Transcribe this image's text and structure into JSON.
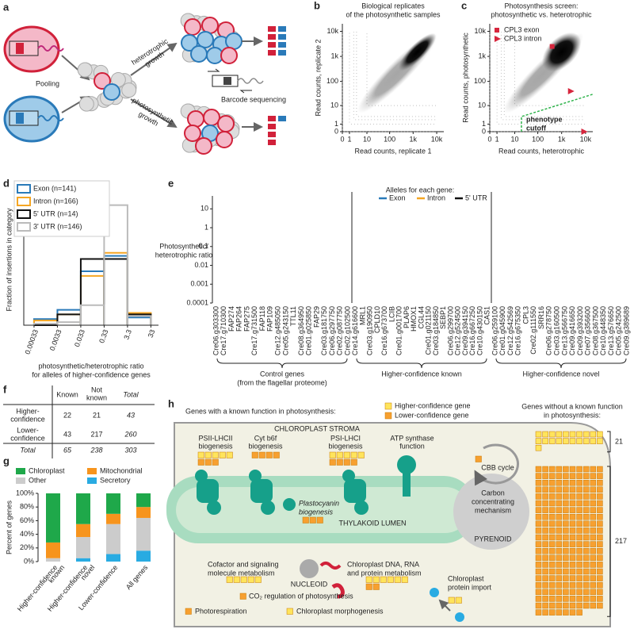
{
  "panels": {
    "a": {
      "label": "a",
      "pooling": "Pooling",
      "heterotrophic": [
        "heterotrophic",
        "growth"
      ],
      "photosynthetic": [
        "photosynthetic",
        "growth"
      ],
      "barcode": "Barcode sequencing"
    },
    "f": {
      "label": "f",
      "columns": [
        [
          "Known"
        ],
        [
          "Not",
          "known"
        ],
        [
          "Total"
        ]
      ],
      "rows": [
        {
          "name": [
            "Higher-",
            "confidence"
          ],
          "cells": [
            22,
            21,
            43
          ]
        },
        {
          "name": [
            "Lower-",
            "confidence"
          ],
          "cells": [
            43,
            217,
            260
          ]
        },
        {
          "name": [
            "Total"
          ],
          "cells": [
            65,
            238,
            303
          ]
        }
      ]
    },
    "h": {
      "label": "h",
      "heading": "Genes with a known function in photosynthesis:",
      "legend": [
        {
          "name": "Higher-confidence gene",
          "color": "#ffe45c"
        },
        {
          "name": "Lower-confidence gene",
          "color": "#f7a030"
        }
      ],
      "unknown_heading": [
        "Genes without a known function",
        "in photosynthesis:"
      ],
      "unknown_counts": [
        21,
        217
      ],
      "stroma": "CHLOROPLAST STROMA",
      "lumen": "THYLAKOID LUMEN",
      "pyrenoid": "PYRENOID",
      "nucleoid": "NUCLEOID",
      "psii": [
        "PSII-LHCII",
        "biogenesis"
      ],
      "cyt": [
        "Cyt b6f",
        "biogenesis"
      ],
      "psi": [
        "PSI-LHCI",
        "biogenesis"
      ],
      "atp": [
        "ATP synthase",
        "function"
      ],
      "cbb": "CBB cycle",
      "plastocyanin": [
        "Plastocyanin",
        "biogenesis"
      ],
      "ccm": [
        "Carbon",
        "concentrating",
        "mechanism"
      ],
      "cofactor": [
        "Cofactor and signaling",
        "molecule metabolism"
      ],
      "dna": [
        "Chloroplast DNA, RNA",
        "and protein metabolism"
      ],
      "co2": "CO₂ regulation of photosynthesis",
      "import": [
        "Chloroplast",
        "protein import"
      ],
      "photoresp": "Photorespiration",
      "morpho": "Chloroplast morphogenesis"
    }
  },
  "chart_data": [
    {
      "type": "density",
      "label": "b",
      "title": [
        "Biological replicates",
        "of the photosynthetic samples"
      ],
      "xlabel": "Read counts, replicate 1",
      "ylabel": "Read counts, replicate 2",
      "scale": "log1p",
      "xlim": [
        0,
        20000
      ],
      "ylim": [
        0,
        20000
      ],
      "xticks": [
        0,
        1,
        10,
        100,
        {
          "value": 1000,
          "label": "1k"
        },
        {
          "value": 10000,
          "label": "10k"
        }
      ],
      "yticks": [
        0,
        1,
        10,
        100,
        {
          "value": 1000,
          "label": "1k"
        },
        {
          "value": 10000,
          "label": "10k"
        }
      ]
    },
    {
      "type": "density",
      "label": "c",
      "title": [
        "Photosynthesis screen:",
        "photosynthetic vs. heterotrophic"
      ],
      "xlabel": "Read counts, heterotrophic",
      "ylabel": "Read counts, photosynthetic",
      "scale": "log1p",
      "xlim": [
        0,
        20000
      ],
      "ylim": [
        0,
        20000
      ],
      "xticks": [
        0,
        1,
        10,
        100,
        {
          "value": 1000,
          "label": "1k"
        },
        {
          "value": 10000,
          "label": "10k"
        }
      ],
      "yticks": [
        0,
        1,
        10,
        100,
        {
          "value": 1000,
          "label": "1k"
        },
        {
          "value": 10000,
          "label": "10k"
        }
      ],
      "series": [
        {
          "name": "CPL3 exon",
          "color": "#d7263d",
          "marker": "square",
          "x": [
            400
          ],
          "y": [
            2500
          ]
        },
        {
          "name": "CPL3 intron",
          "color": "#d7263d",
          "marker": "triangle",
          "x": [
            2500,
            9000
          ],
          "y": [
            40,
            0
          ]
        }
      ],
      "annotation": [
        "phenotype",
        "cutoff"
      ],
      "annotation_color": "#2db34a"
    },
    {
      "type": "histogram",
      "label": "d",
      "ylabel": "Fraction of insertions in category",
      "xlabel": [
        "photosynthetic/heterotrophic ratio",
        "for alleles of higher-confidence genes"
      ],
      "log": true,
      "xlim": [
        0.00012,
        70
      ],
      "ylim": [
        0,
        0.85
      ],
      "xticks": [
        0.00033,
        0.0033,
        0.033,
        0.33,
        3.3,
        33
      ],
      "bins": [
        0.00033,
        0.0033,
        0.033,
        0.33,
        3.3,
        33
      ],
      "series": [
        {
          "name": "Exon (n=141)",
          "color": "#2a7ab9",
          "values": [
            0.04,
            0.1,
            0.35,
            0.45,
            0.05
          ]
        },
        {
          "name": "Intron (n=166)",
          "color": "#f5a623",
          "values": [
            0.03,
            0.07,
            0.32,
            0.47,
            0.08
          ]
        },
        {
          "name": "5' UTR (n=14)",
          "color": "#111111",
          "values": [
            0.0,
            0.07,
            0.43,
            0.43,
            0.07
          ]
        },
        {
          "name": "3' UTR (n=146)",
          "color": "#bbbbbb",
          "values": [
            0.01,
            0.02,
            0.13,
            0.78,
            0.06
          ]
        }
      ]
    },
    {
      "type": "dot",
      "label": "e",
      "ylabel": [
        "Photosynthetic/",
        "heterotrophic ratio"
      ],
      "log": true,
      "ylim": [
        0.0001,
        30
      ],
      "yticks": [
        10,
        1,
        0.1,
        0.01,
        0.001,
        0.0001
      ],
      "legend_title": "Alleles for each gene:",
      "series": [
        {
          "name": "Exon",
          "color": "#2a7ab9"
        },
        {
          "name": "Intron",
          "color": "#f5a623"
        },
        {
          "name": "5' UTR",
          "color": "#111111"
        }
      ],
      "highlight": "CPL3",
      "highlight_color": "#d7263d",
      "groups": [
        {
          "name": [
            "Control genes",
            "(from the flagellar proteome)"
          ],
          "genes": [
            "Cre06.g303300",
            "Cre17.g710300",
            "FAP274",
            "FAP264",
            "FAP275",
            "Cre17.g731500",
            "FAP118",
            "FAP109",
            "Cre12.g485050",
            "Cre05.g243150",
            "TTL11",
            "Cre08.g364950",
            "Cre01.g025850",
            "FAP29",
            "Cre03.g181750",
            "Cre06.g297750",
            "Cre02.g087750",
            "Cre02.g102500"
          ]
        },
        {
          "name": [
            "Higher-confidence known"
          ],
          "genes": [
            "Cre14.g616600",
            "MRL1",
            "Cre03.g190950",
            "CPLD10",
            "Cre16.g673700",
            "LCIB",
            "Cre01.g001700",
            "PLAP6",
            "HMOX1",
            "CGL44",
            "Cre01.g021150",
            "Cre03.g184850",
            "SEBP1",
            "Cre06.g299700",
            "Cre12.g524500",
            "Cre09.g394150",
            "Cre16.g667250",
            "Cre10.g430150",
            "CAS1"
          ]
        },
        {
          "name": [
            "Higher-confidence novel"
          ],
          "genes": [
            "Cre06.g259100",
            "Cre01.g045900",
            "Cre12.g542569",
            "Cre16.g675350",
            "CPL3",
            "Cre02.g111550",
            "SRR16",
            "Cre06.g278750",
            "Cre03.g160500",
            "Cre13.g566750",
            "Cre09.g416650",
            "Cre09.g393200",
            "Cre07.g356600",
            "Cre08.g367500",
            "Cre10.g448350",
            "Cre13.g576650",
            "Cre05.g242500",
            "Cre09.g389689"
          ]
        }
      ]
    },
    {
      "type": "stacked_bar",
      "label": "g",
      "ylabel": "Percent of genes",
      "ylim": [
        0,
        100
      ],
      "yticks": [
        {
          "value": 0,
          "label": "0%"
        },
        {
          "value": 20,
          "label": "20%"
        },
        {
          "value": 40,
          "label": "40%"
        },
        {
          "value": 60,
          "label": "60%"
        },
        {
          "value": 80,
          "label": "80%"
        },
        {
          "value": 100,
          "label": "100%"
        }
      ],
      "categories": [
        [
          "Higher-confidence",
          "known"
        ],
        [
          "Higher-confidence",
          "novel"
        ],
        [
          "Lower-confidence"
        ],
        [
          "All genes"
        ]
      ],
      "series": [
        {
          "name": "Secretory",
          "color": "#29abe2",
          "values": [
            0,
            5,
            11,
            16
          ]
        },
        {
          "name": "Other",
          "color": "#cccccc",
          "values": [
            5,
            31,
            44,
            48
          ]
        },
        {
          "name": "Mitochondrial",
          "color": "#f7941d",
          "values": [
            23,
            19,
            15,
            16
          ]
        },
        {
          "name": "Chloroplast",
          "color": "#1fa84a",
          "values": [
            72,
            45,
            30,
            20
          ]
        }
      ]
    }
  ]
}
